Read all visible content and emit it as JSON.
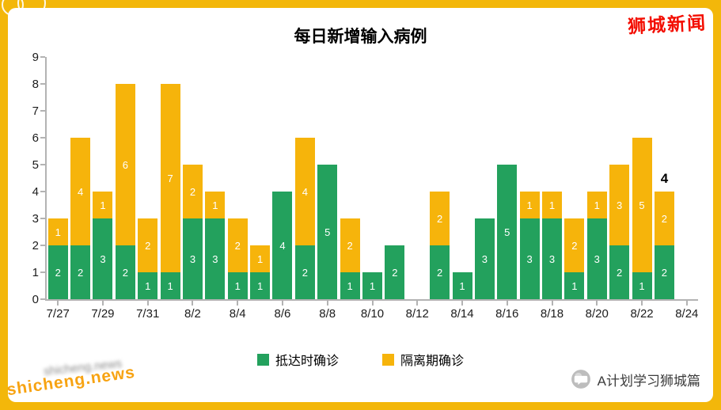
{
  "page": {
    "brand": "狮城新闻",
    "watermark": "shicheng.news",
    "watermark_ghost": "shicheng.news",
    "footer_account": "A计划学习狮城篇",
    "colors": {
      "frame": "#F3B70A",
      "panel": "#FFFFFF",
      "brand_red": "#F30D00",
      "watermark_orange": "#F7A312"
    }
  },
  "chart_data": {
    "type": "bar",
    "stacked": true,
    "title": "每日新增输入病例",
    "ylim": [
      0,
      9
    ],
    "yticks": [
      0,
      1,
      2,
      3,
      4,
      5,
      6,
      7,
      8,
      9
    ],
    "grid": false,
    "legend_position": "bottom",
    "x_dates": [
      "7/27",
      "7/28",
      "7/29",
      "7/30",
      "7/31",
      "8/1",
      "8/2",
      "8/3",
      "8/4",
      "8/5",
      "8/6",
      "8/7",
      "8/8",
      "8/9",
      "8/10",
      "8/11",
      "8/12",
      "8/13",
      "8/14",
      "8/15",
      "8/16",
      "8/17",
      "8/18",
      "8/19",
      "8/20",
      "8/21",
      "8/22",
      "8/23"
    ],
    "xtick_labels": [
      "7/27",
      "7/29",
      "7/31",
      "8/2",
      "8/4",
      "8/6",
      "8/8",
      "8/10",
      "8/12",
      "8/14",
      "8/16",
      "8/18",
      "8/20",
      "8/22",
      "8/24"
    ],
    "series": [
      {
        "name": "抵达时确诊",
        "color": "#23A15D",
        "values": [
          2,
          2,
          3,
          2,
          1,
          1,
          3,
          3,
          1,
          1,
          4,
          2,
          5,
          1,
          1,
          2,
          0,
          2,
          1,
          3,
          5,
          3,
          3,
          1,
          3,
          2,
          1,
          2
        ]
      },
      {
        "name": "隔离期确诊",
        "color": "#F6B40B",
        "values": [
          1,
          4,
          1,
          6,
          2,
          7,
          2,
          1,
          2,
          1,
          0,
          4,
          0,
          2,
          0,
          0,
          0,
          2,
          0,
          0,
          0,
          1,
          1,
          2,
          1,
          3,
          5,
          2
        ]
      }
    ],
    "total_annotation": {
      "text": "4",
      "date": "8/23",
      "index": 27
    }
  }
}
